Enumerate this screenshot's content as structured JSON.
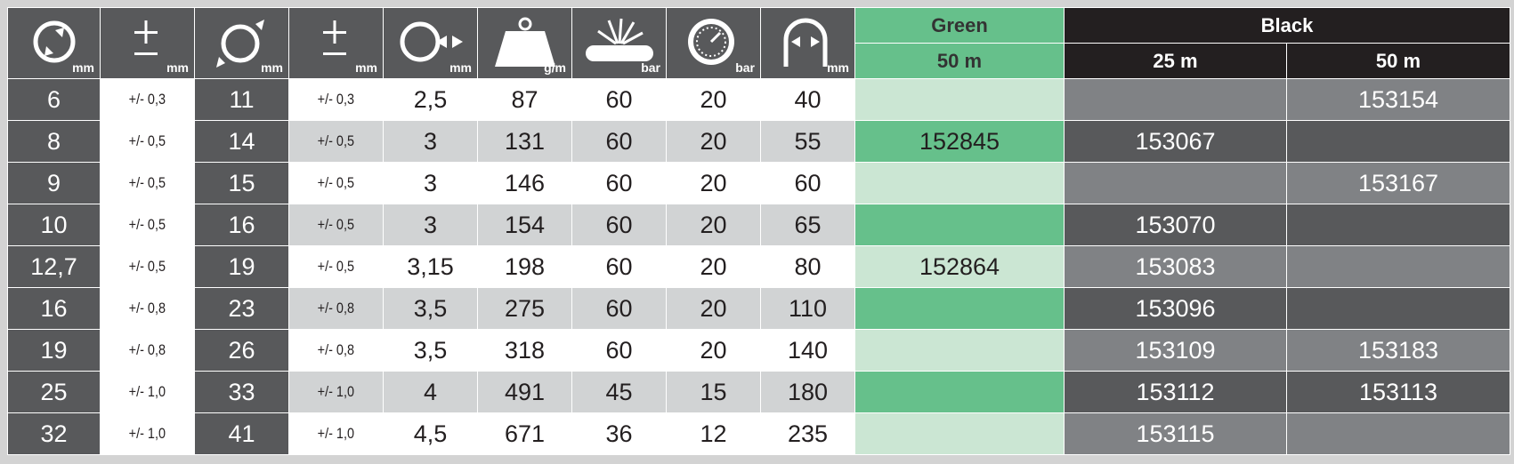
{
  "header": {
    "icons": [
      {
        "icon": "inner-diameter-icon",
        "unit": "mm"
      },
      {
        "icon": "plus-minus-icon",
        "unit": "mm"
      },
      {
        "icon": "outer-diameter-icon",
        "unit": "mm"
      },
      {
        "icon": "plus-minus-icon",
        "unit": "mm"
      },
      {
        "icon": "wall-thickness-icon",
        "unit": "mm"
      },
      {
        "icon": "weight-icon",
        "unit": "g/m"
      },
      {
        "icon": "burst-pressure-icon",
        "unit": "bar"
      },
      {
        "icon": "pressure-gauge-icon",
        "unit": "bar"
      },
      {
        "icon": "bend-radius-icon",
        "unit": "mm"
      }
    ],
    "green_label": "Green",
    "black_label": "Black",
    "green_50": "50 m",
    "black_25": "25 m",
    "black_50": "50 m"
  },
  "colors": {
    "dark_gray": "#58595b",
    "light_gray": "#d1d3d4",
    "green": "#66c08b",
    "light_green": "#cbe6d3",
    "black": "#231f20",
    "mid_gray": "#808285"
  },
  "rows": [
    {
      "id": "6",
      "tol1": "+/- 0,3",
      "od": "11",
      "tol2": "+/- 0,3",
      "wall": "2,5",
      "weight": "87",
      "burst": "60",
      "work": "20",
      "bend": "40",
      "green50": "",
      "black25": "",
      "black50": "153154"
    },
    {
      "id": "8",
      "tol1": "+/- 0,5",
      "od": "14",
      "tol2": "+/- 0,5",
      "wall": "3",
      "weight": "131",
      "burst": "60",
      "work": "20",
      "bend": "55",
      "green50": "152845",
      "black25": "153067",
      "black50": ""
    },
    {
      "id": "9",
      "tol1": "+/- 0,5",
      "od": "15",
      "tol2": "+/- 0,5",
      "wall": "3",
      "weight": "146",
      "burst": "60",
      "work": "20",
      "bend": "60",
      "green50": "",
      "black25": "",
      "black50": "153167"
    },
    {
      "id": "10",
      "tol1": "+/- 0,5",
      "od": "16",
      "tol2": "+/- 0,5",
      "wall": "3",
      "weight": "154",
      "burst": "60",
      "work": "20",
      "bend": "65",
      "green50": "",
      "black25": "153070",
      "black50": ""
    },
    {
      "id": "12,7",
      "tol1": "+/- 0,5",
      "od": "19",
      "tol2": "+/- 0,5",
      "wall": "3,15",
      "weight": "198",
      "burst": "60",
      "work": "20",
      "bend": "80",
      "green50": "152864",
      "black25": "153083",
      "black50": ""
    },
    {
      "id": "16",
      "tol1": "+/- 0,8",
      "od": "23",
      "tol2": "+/- 0,8",
      "wall": "3,5",
      "weight": "275",
      "burst": "60",
      "work": "20",
      "bend": "110",
      "green50": "",
      "black25": "153096",
      "black50": ""
    },
    {
      "id": "19",
      "tol1": "+/- 0,8",
      "od": "26",
      "tol2": "+/- 0,8",
      "wall": "3,5",
      "weight": "318",
      "burst": "60",
      "work": "20",
      "bend": "140",
      "green50": "",
      "black25": "153109",
      "black50": "153183"
    },
    {
      "id": "25",
      "tol1": "+/- 1,0",
      "od": "33",
      "tol2": "+/- 1,0",
      "wall": "4",
      "weight": "491",
      "burst": "45",
      "work": "15",
      "bend": "180",
      "green50": "",
      "black25": "153112",
      "black50": "153113"
    },
    {
      "id": "32",
      "tol1": "+/- 1,0",
      "od": "41",
      "tol2": "+/- 1,0",
      "wall": "4,5",
      "weight": "671",
      "burst": "36",
      "work": "12",
      "bend": "235",
      "green50": "",
      "black25": "153115",
      "black50": ""
    }
  ]
}
